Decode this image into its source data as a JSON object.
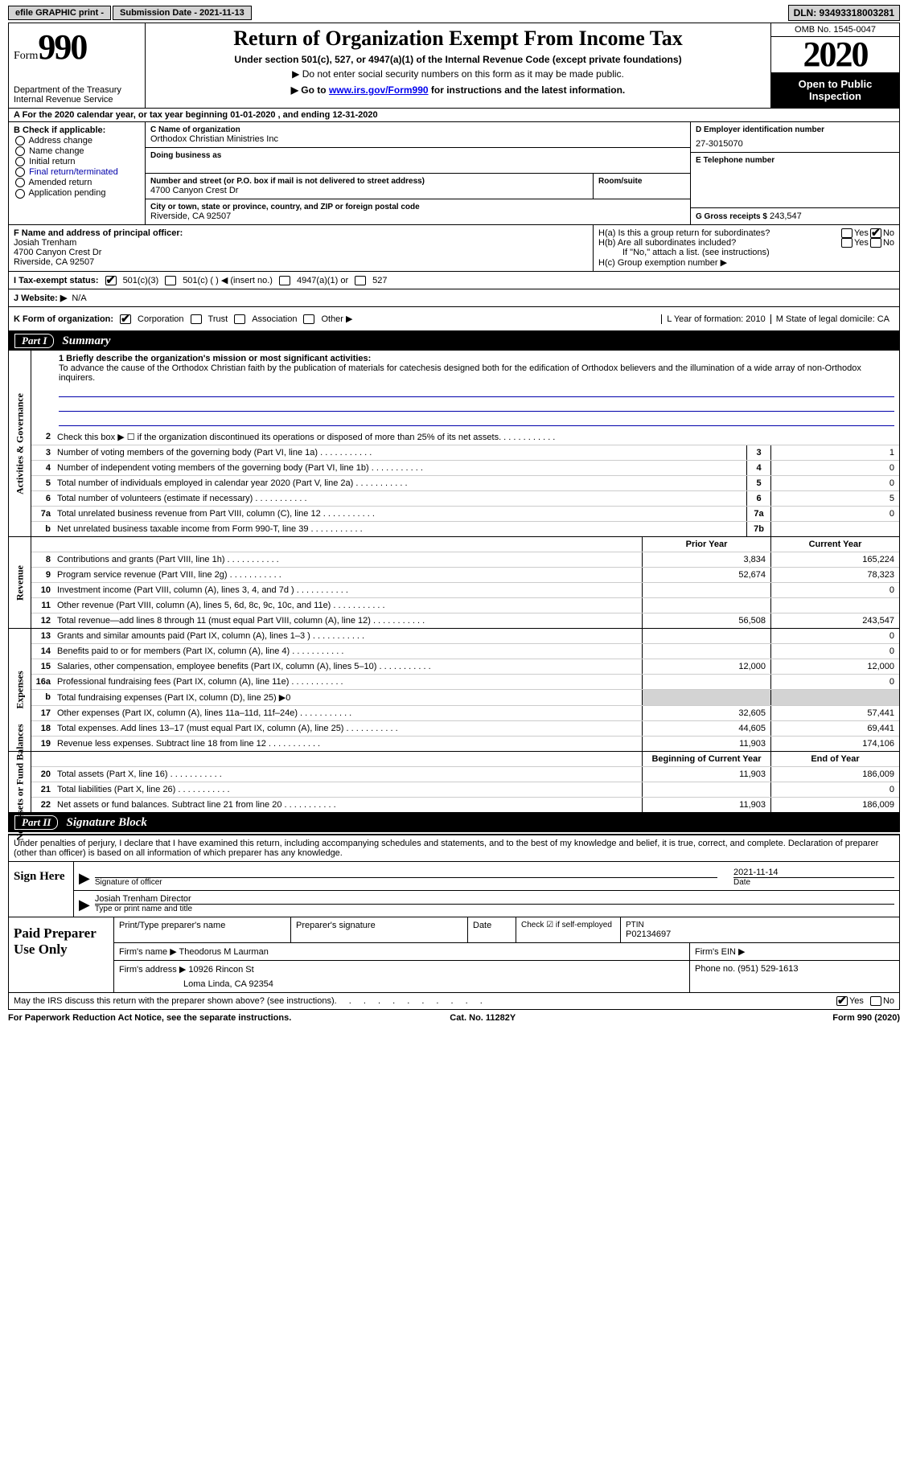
{
  "topbar": {
    "efile": "efile GRAPHIC print -",
    "submission_label": "Submission Date - 2021-11-13",
    "dln": "DLN: 93493318003281"
  },
  "header": {
    "form_word": "Form",
    "form_num": "990",
    "dept": "Department of the Treasury\nInternal Revenue Service",
    "title": "Return of Organization Exempt From Income Tax",
    "sub": "Under section 501(c), 527, or 4947(a)(1) of the Internal Revenue Code (except private foundations)",
    "sub2": "▶ Do not enter social security numbers on this form as it may be made public.",
    "sub3_pre": "▶ Go to ",
    "sub3_link": "www.irs.gov/Form990",
    "sub3_post": " for instructions and the latest information.",
    "omb": "OMB No. 1545-0047",
    "year": "2020",
    "open": "Open to Public Inspection"
  },
  "row_a": "A For the 2020 calendar year, or tax year beginning 01-01-2020   , and ending 12-31-2020",
  "col_b": {
    "title": "B Check if applicable:",
    "items": [
      "Address change",
      "Name change",
      "Initial return",
      "Final return/terminated",
      "Amended return",
      "Application pending"
    ]
  },
  "col_c": {
    "c_lbl": "C Name of organization",
    "c_name": "Orthodox Christian Ministries Inc",
    "dba_lbl": "Doing business as",
    "addr_lbl": "Number and street (or P.O. box if mail is not delivered to street address)",
    "room_lbl": "Room/suite",
    "addr": "4700 Canyon Crest Dr",
    "city_lbl": "City or town, state or province, country, and ZIP or foreign postal code",
    "city": "Riverside, CA  92507"
  },
  "col_d": {
    "d_lbl": "D Employer identification number",
    "ein": "27-3015070",
    "e_lbl": "E Telephone number",
    "g_lbl": "G Gross receipts $",
    "g_val": "243,547"
  },
  "fh": {
    "f_lbl": "F  Name and address of principal officer:",
    "f_name": "Josiah Trenham",
    "f_addr1": "4700 Canyon Crest Dr",
    "f_addr2": "Riverside, CA  92507",
    "ha": "H(a)  Is this a group return for subordinates?",
    "hb": "H(b)  Are all subordinates included?",
    "hb_note": "If \"No,\" attach a list. (see instructions)",
    "hc": "H(c)  Group exemption number ▶",
    "yes": "Yes",
    "no": "No"
  },
  "row_i": {
    "lbl": "I   Tax-exempt status:",
    "opts": [
      "501(c)(3)",
      "501(c) (  ) ◀ (insert no.)",
      "4947(a)(1) or",
      "527"
    ]
  },
  "row_j": {
    "lbl": "J   Website: ▶",
    "val": "N/A"
  },
  "row_k": {
    "lbl": "K Form of organization:",
    "opts": [
      "Corporation",
      "Trust",
      "Association",
      "Other ▶"
    ],
    "l": "L Year of formation: 2010",
    "m": "M State of legal domicile: CA"
  },
  "part1": {
    "no": "Part I",
    "title": "Summary"
  },
  "mission": {
    "q1": "1  Briefly describe the organization's mission or most significant activities:",
    "text": "To advance the cause of the Orthodox Christian faith by the publication of materials for catechesis designed both for the edification of Orthodox believers and the illumination of a wide array of non-Orthodox inquirers."
  },
  "gov_rows": [
    {
      "n": "2",
      "d": "Check this box ▶ ☐  if the organization discontinued its operations or disposed of more than 25% of its net assets."
    },
    {
      "n": "3",
      "d": "Number of voting members of the governing body (Part VI, line 1a)",
      "box": "3",
      "v": "1"
    },
    {
      "n": "4",
      "d": "Number of independent voting members of the governing body (Part VI, line 1b)",
      "box": "4",
      "v": "0"
    },
    {
      "n": "5",
      "d": "Total number of individuals employed in calendar year 2020 (Part V, line 2a)",
      "box": "5",
      "v": "0"
    },
    {
      "n": "6",
      "d": "Total number of volunteers (estimate if necessary)",
      "box": "6",
      "v": "5"
    },
    {
      "n": "7a",
      "d": "Total unrelated business revenue from Part VIII, column (C), line 12",
      "box": "7a",
      "v": "0"
    },
    {
      "n": "b",
      "d": "Net unrelated business taxable income from Form 990-T, line 39",
      "box": "7b",
      "v": ""
    }
  ],
  "rev_hdr": {
    "py": "Prior Year",
    "cy": "Current Year"
  },
  "rev_rows": [
    {
      "n": "8",
      "d": "Contributions and grants (Part VIII, line 1h)",
      "py": "3,834",
      "cy": "165,224"
    },
    {
      "n": "9",
      "d": "Program service revenue (Part VIII, line 2g)",
      "py": "52,674",
      "cy": "78,323"
    },
    {
      "n": "10",
      "d": "Investment income (Part VIII, column (A), lines 3, 4, and 7d )",
      "py": "",
      "cy": "0"
    },
    {
      "n": "11",
      "d": "Other revenue (Part VIII, column (A), lines 5, 6d, 8c, 9c, 10c, and 11e)",
      "py": "",
      "cy": ""
    },
    {
      "n": "12",
      "d": "Total revenue—add lines 8 through 11 (must equal Part VIII, column (A), line 12)",
      "py": "56,508",
      "cy": "243,547"
    }
  ],
  "exp_rows": [
    {
      "n": "13",
      "d": "Grants and similar amounts paid (Part IX, column (A), lines 1–3 )",
      "py": "",
      "cy": "0"
    },
    {
      "n": "14",
      "d": "Benefits paid to or for members (Part IX, column (A), line 4)",
      "py": "",
      "cy": "0"
    },
    {
      "n": "15",
      "d": "Salaries, other compensation, employee benefits (Part IX, column (A), lines 5–10)",
      "py": "12,000",
      "cy": "12,000"
    },
    {
      "n": "16a",
      "d": "Professional fundraising fees (Part IX, column (A), line 11e)",
      "py": "",
      "cy": "0"
    },
    {
      "n": "b",
      "d": "Total fundraising expenses (Part IX, column (D), line 25) ▶0",
      "py": "SHADE",
      "cy": "SHADE"
    },
    {
      "n": "17",
      "d": "Other expenses (Part IX, column (A), lines 11a–11d, 11f–24e)",
      "py": "32,605",
      "cy": "57,441"
    },
    {
      "n": "18",
      "d": "Total expenses. Add lines 13–17 (must equal Part IX, column (A), line 25)",
      "py": "44,605",
      "cy": "69,441"
    },
    {
      "n": "19",
      "d": "Revenue less expenses. Subtract line 18 from line 12",
      "py": "11,903",
      "cy": "174,106"
    }
  ],
  "net_hdr": {
    "py": "Beginning of Current Year",
    "cy": "End of Year"
  },
  "net_rows": [
    {
      "n": "20",
      "d": "Total assets (Part X, line 16)",
      "py": "11,903",
      "cy": "186,009"
    },
    {
      "n": "21",
      "d": "Total liabilities (Part X, line 26)",
      "py": "",
      "cy": "0"
    },
    {
      "n": "22",
      "d": "Net assets or fund balances. Subtract line 21 from line 20",
      "py": "11,903",
      "cy": "186,009"
    }
  ],
  "part2": {
    "no": "Part II",
    "title": "Signature Block"
  },
  "sig": {
    "decl": "Under penalties of perjury, I declare that I have examined this return, including accompanying schedules and statements, and to the best of my knowledge and belief, it is true, correct, and complete. Declaration of preparer (other than officer) is based on all information of which preparer has any knowledge.",
    "sign_here": "Sign Here",
    "sig_officer": "Signature of officer",
    "date": "Date",
    "date_val": "2021-11-14",
    "name_title": "Josiah Trenham  Director",
    "type_lbl": "Type or print name and title"
  },
  "paid": {
    "lbl": "Paid Preparer Use Only",
    "pt_name_lbl": "Print/Type preparer's name",
    "prep_sig_lbl": "Preparer's signature",
    "date_lbl": "Date",
    "check_lbl": "Check ☑ if self-employed",
    "ptin_lbl": "PTIN",
    "ptin": "P02134697",
    "firm_name_lbl": "Firm's name   ▶",
    "firm_name": "Theodorus M Laurman",
    "firm_ein_lbl": "Firm's EIN ▶",
    "firm_addr_lbl": "Firm's address ▶",
    "firm_addr": "10926 Rincon St",
    "firm_city": "Loma Linda, CA  92354",
    "phone_lbl": "Phone no.",
    "phone": "(951) 529-1613"
  },
  "foot": {
    "discuss": "May the IRS discuss this return with the preparer shown above? (see instructions)",
    "yes": "Yes",
    "no": "No",
    "pra": "For Paperwork Reduction Act Notice, see the separate instructions.",
    "cat": "Cat. No. 11282Y",
    "form": "Form 990 (2020)"
  },
  "vlabels": {
    "gov": "Activities & Governance",
    "rev": "Revenue",
    "exp": "Expenses",
    "net": "Net Assets or Fund Balances"
  }
}
